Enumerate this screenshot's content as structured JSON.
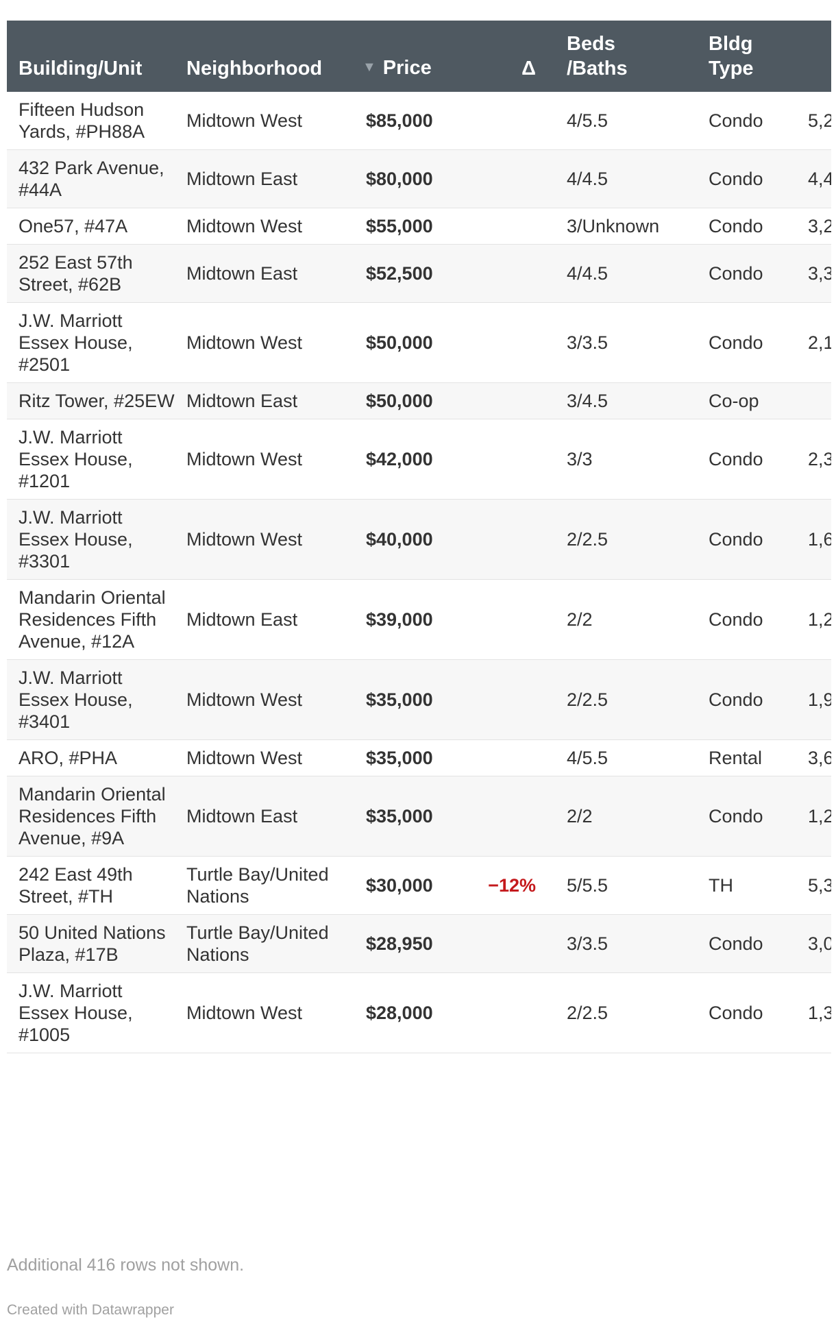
{
  "table": {
    "headers": {
      "building": "Building/Unit",
      "neighborhood": "Neighborhood",
      "price": "Price",
      "sort_indicator": "▼",
      "delta": "Δ",
      "beds_line1": "Beds",
      "beds_line2": "/Baths",
      "type_line1": "Bldg",
      "type_line2": "Type"
    },
    "rows": [
      {
        "building": "Fifteen Hudson Yards, #PH88A",
        "neighborhood": "Midtown West",
        "price": "$85,000",
        "delta": "",
        "beds": "4/5.5",
        "type": "Condo",
        "extra": "5,2"
      },
      {
        "building": "432 Park Avenue, #44A",
        "neighborhood": "Midtown East",
        "price": "$80,000",
        "delta": "",
        "beds": "4/4.5",
        "type": "Condo",
        "extra": "4,4"
      },
      {
        "building": "One57, #47A",
        "neighborhood": "Midtown West",
        "price": "$55,000",
        "delta": "",
        "beds": "3/Unknown",
        "type": "Condo",
        "extra": "3,2"
      },
      {
        "building": "252 East 57th Street, #62B",
        "neighborhood": "Midtown East",
        "price": "$52,500",
        "delta": "",
        "beds": "4/4.5",
        "type": "Condo",
        "extra": "3,3"
      },
      {
        "building": "J.W. Marriott Essex House, #2501",
        "neighborhood": "Midtown West",
        "price": "$50,000",
        "delta": "",
        "beds": "3/3.5",
        "type": "Condo",
        "extra": "2,1"
      },
      {
        "building": "Ritz Tower, #25EW",
        "neighborhood": "Midtown East",
        "price": "$50,000",
        "delta": "",
        "beds": "3/4.5",
        "type": "Co-op",
        "extra": ""
      },
      {
        "building": "J.W. Marriott Essex House, #1201",
        "neighborhood": "Midtown West",
        "price": "$42,000",
        "delta": "",
        "beds": "3/3",
        "type": "Condo",
        "extra": "2,3"
      },
      {
        "building": "J.W. Marriott Essex House, #3301",
        "neighborhood": "Midtown West",
        "price": "$40,000",
        "delta": "",
        "beds": "2/2.5",
        "type": "Condo",
        "extra": "1,6"
      },
      {
        "building": "Mandarin Oriental Residences Fifth Avenue, #12A",
        "neighborhood": "Midtown East",
        "price": "$39,000",
        "delta": "",
        "beds": "2/2",
        "type": "Condo",
        "extra": "1,2"
      },
      {
        "building": "J.W. Marriott Essex House, #3401",
        "neighborhood": "Midtown West",
        "price": "$35,000",
        "delta": "",
        "beds": "2/2.5",
        "type": "Condo",
        "extra": "1,9"
      },
      {
        "building": "ARO, #PHA",
        "neighborhood": "Midtown West",
        "price": "$35,000",
        "delta": "",
        "beds": "4/5.5",
        "type": "Rental",
        "extra": "3,6"
      },
      {
        "building": "Mandarin Oriental Residences Fifth Avenue, #9A",
        "neighborhood": "Midtown East",
        "price": "$35,000",
        "delta": "",
        "beds": "2/2",
        "type": "Condo",
        "extra": "1,2"
      },
      {
        "building": "242 East 49th Street, #TH",
        "neighborhood": "Turtle Bay/United Nations",
        "price": "$30,000",
        "delta": "−12%",
        "beds": "5/5.5",
        "type": "TH",
        "extra": "5,3"
      },
      {
        "building": "50 United Nations Plaza, #17B",
        "neighborhood": "Turtle Bay/United Nations",
        "price": "$28,950",
        "delta": "",
        "beds": "3/3.5",
        "type": "Condo",
        "extra": "3,0"
      },
      {
        "building": "J.W. Marriott Essex House, #1005",
        "neighborhood": "Midtown West",
        "price": "$28,000",
        "delta": "",
        "beds": "2/2.5",
        "type": "Condo",
        "extra": "1,3"
      }
    ]
  },
  "footnote": "Additional 416 rows not shown.",
  "credit": "Created with Datawrapper",
  "colors": {
    "header_bg": "#4f5961",
    "negative_delta": "#c4191c",
    "muted_text": "#a0a0a0"
  }
}
